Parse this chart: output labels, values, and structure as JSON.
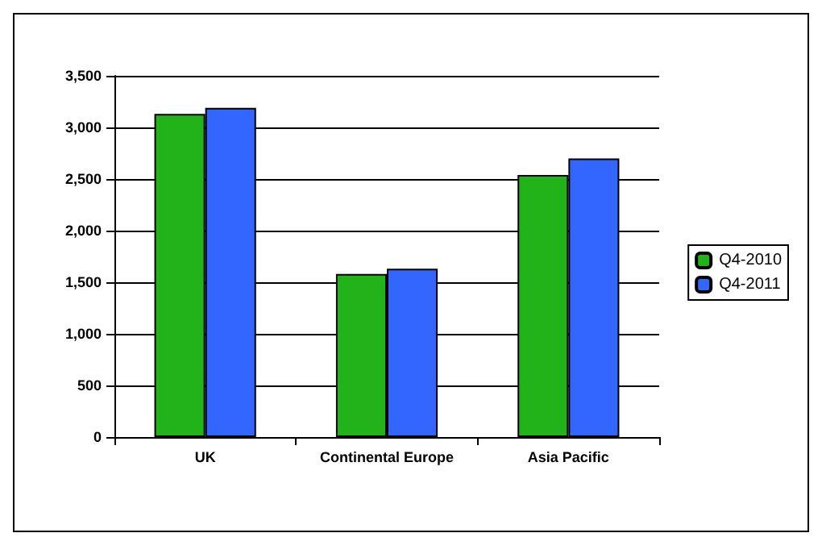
{
  "chart_data": {
    "type": "bar",
    "categories": [
      "UK",
      "Continental Europe",
      "Asia Pacific"
    ],
    "series": [
      {
        "name": "Q4-2010",
        "color": "#22b21a",
        "values": [
          3130,
          1580,
          2540
        ]
      },
      {
        "name": "Q4-2011",
        "color": "#3366ff",
        "values": [
          3190,
          1630,
          2700
        ]
      }
    ],
    "ylim": [
      0,
      3500
    ],
    "yticks": [
      0,
      500,
      {
        "value": 1000,
        "label": "1,000"
      },
      {
        "value": 1500,
        "label": "1,500"
      },
      {
        "value": 2000,
        "label": "2,000"
      },
      {
        "value": 2500,
        "label": "2,500"
      },
      {
        "value": 3000,
        "label": "3,000"
      },
      {
        "value": 3500,
        "label": "3,500"
      }
    ],
    "grid": "y",
    "legend": "right"
  }
}
